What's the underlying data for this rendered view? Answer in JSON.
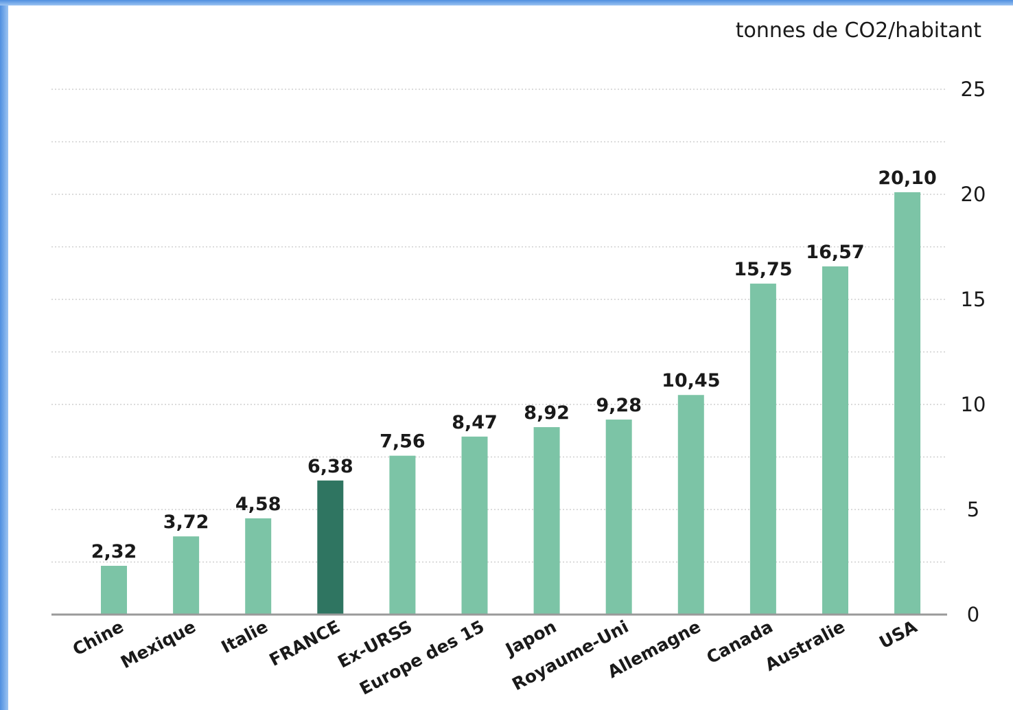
{
  "colors": {
    "bar": "#7cc4a6",
    "highlight_bar": "#2f7561",
    "grid": "#cfcfcf",
    "axis": "#9a9a9a",
    "frame": "#5b9be6"
  },
  "chart_data": {
    "type": "bar",
    "title": "",
    "xlabel": "",
    "ylabel": "tonnes de CO2/habitant",
    "ylim": [
      0,
      25
    ],
    "yticks": [
      0,
      5,
      10,
      15,
      20,
      25
    ],
    "y_axis_side": "right",
    "grid": true,
    "categories": [
      "Chine",
      "Mexique",
      "Italie",
      "FRANCE",
      "Ex-URSS",
      "Europe des 15",
      "Japon",
      "Royaume-Uni",
      "Allemagne",
      "Canada",
      "Australie",
      "USA"
    ],
    "values": [
      2.32,
      3.72,
      4.58,
      6.38,
      7.56,
      8.47,
      8.92,
      9.28,
      10.45,
      15.75,
      16.57,
      20.1
    ],
    "value_labels": [
      "2,32",
      "3,72",
      "4,58",
      "6,38",
      "7,56",
      "8,47",
      "8,92",
      "9,28",
      "10,45",
      "15,75",
      "16,57",
      "20,10"
    ],
    "highlight_category": "FRANCE"
  }
}
